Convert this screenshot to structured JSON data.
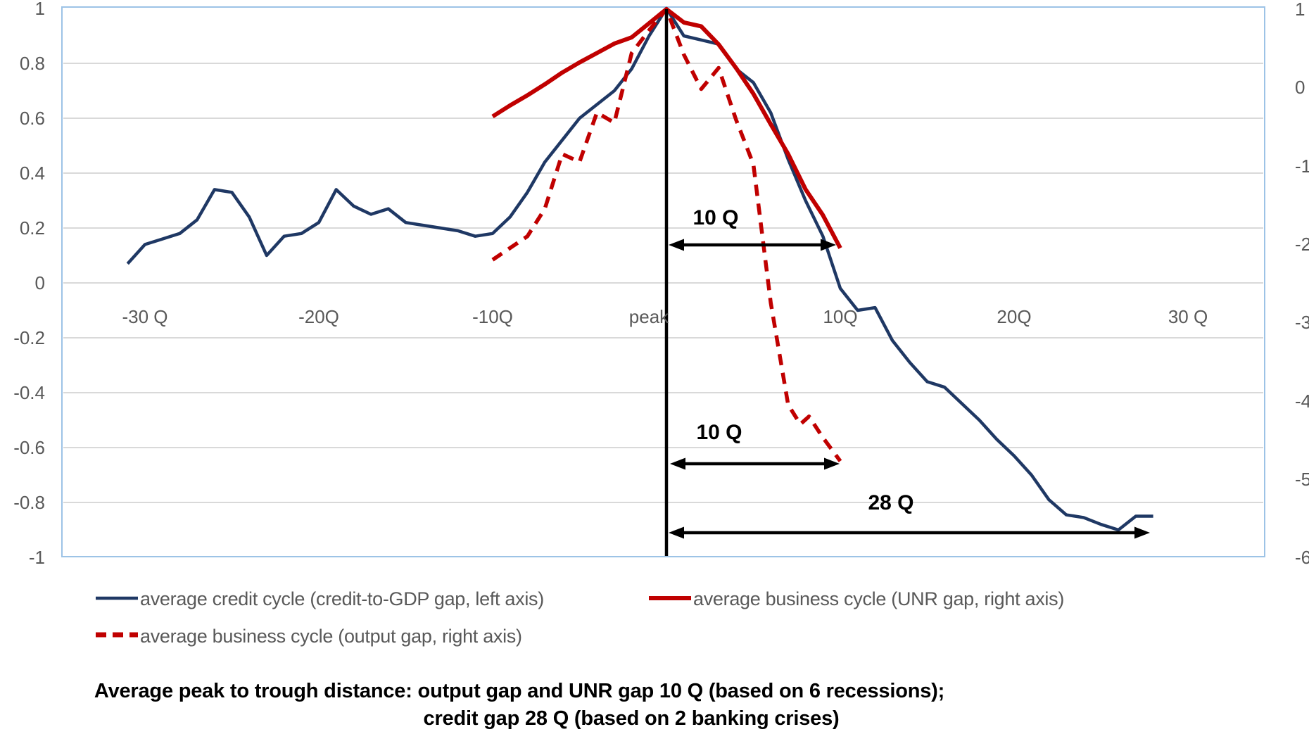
{
  "colors": {
    "credit_line": "#1f3864",
    "business_line": "#c00000",
    "gridline": "#d9d9d9",
    "plot_frame": "#9dc3e6",
    "axis_text": "#595959",
    "annotation": "#000000"
  },
  "axes": {
    "left_ticks": [
      {
        "label": "1",
        "v": 1
      },
      {
        "label": "0.8",
        "v": 0.8
      },
      {
        "label": "0.6",
        "v": 0.6
      },
      {
        "label": "0.4",
        "v": 0.4
      },
      {
        "label": "0.2",
        "v": 0.2
      },
      {
        "label": "0",
        "v": 0
      },
      {
        "label": "-0.2",
        "v": -0.2
      },
      {
        "label": "-0.4",
        "v": -0.4
      },
      {
        "label": "-0.6",
        "v": -0.6
      },
      {
        "label": "-0.8",
        "v": -0.8
      },
      {
        "label": "-1",
        "v": -1
      }
    ],
    "right_ticks": [
      {
        "label": "1",
        "r": 1
      },
      {
        "label": "0",
        "r": 0
      },
      {
        "label": "-1",
        "r": -1
      },
      {
        "label": "-2",
        "r": -2
      },
      {
        "label": "-3",
        "r": -3
      },
      {
        "label": "-4",
        "r": -4
      },
      {
        "label": "-5",
        "r": -5
      },
      {
        "label": "-6",
        "r": -6
      }
    ],
    "x_ticks": [
      {
        "label": "-30 Q"
      },
      {
        "label": "-20Q"
      },
      {
        "label": "-10Q"
      },
      {
        "label": "peak"
      },
      {
        "label": "10Q"
      },
      {
        "label": "20Q"
      },
      {
        "label": "30 Q"
      }
    ]
  },
  "chart_data": {
    "type": "line",
    "xlabel_unit": "quarters relative to peak",
    "left_axis_range": [
      -1,
      1
    ],
    "right_axis_range": [
      -6,
      1
    ],
    "grid": true,
    "legend_position": "bottom",
    "series": [
      {
        "name": "average credit cycle (credit-to-GDP gap, left axis)",
        "axis": "left",
        "style": "solid",
        "color": "#1f3864",
        "points": [
          [
            -31,
            0.07
          ],
          [
            -30,
            0.14
          ],
          [
            -29,
            0.16
          ],
          [
            -28,
            0.18
          ],
          [
            -27,
            0.23
          ],
          [
            -26,
            0.34
          ],
          [
            -25,
            0.33
          ],
          [
            -24,
            0.24
          ],
          [
            -23,
            0.1
          ],
          [
            -22,
            0.17
          ],
          [
            -21,
            0.18
          ],
          [
            -20,
            0.22
          ],
          [
            -19,
            0.34
          ],
          [
            -18,
            0.28
          ],
          [
            -17,
            0.25
          ],
          [
            -16,
            0.27
          ],
          [
            -15,
            0.22
          ],
          [
            -14,
            0.21
          ],
          [
            -13,
            0.2
          ],
          [
            -12,
            0.19
          ],
          [
            -11,
            0.17
          ],
          [
            -10,
            0.18
          ],
          [
            -9,
            0.24
          ],
          [
            -8,
            0.33
          ],
          [
            -7,
            0.44
          ],
          [
            -6,
            0.52
          ],
          [
            -5,
            0.6
          ],
          [
            -4,
            0.65
          ],
          [
            -3,
            0.7
          ],
          [
            -2,
            0.78
          ],
          [
            -1,
            0.9
          ],
          [
            0,
            1.0
          ],
          [
            1,
            0.9
          ],
          [
            2,
            0.885
          ],
          [
            3,
            0.87
          ],
          [
            4,
            0.78
          ],
          [
            5,
            0.73
          ],
          [
            6,
            0.62
          ],
          [
            7,
            0.45
          ],
          [
            8,
            0.3
          ],
          [
            9,
            0.17
          ],
          [
            10,
            -0.02
          ],
          [
            11,
            -0.1
          ],
          [
            12,
            -0.09
          ],
          [
            13,
            -0.21
          ],
          [
            14,
            -0.29
          ],
          [
            15,
            -0.36
          ],
          [
            16,
            -0.38
          ],
          [
            17,
            -0.44
          ],
          [
            18,
            -0.5
          ],
          [
            19,
            -0.57
          ],
          [
            20,
            -0.63
          ],
          [
            21,
            -0.7
          ],
          [
            22,
            -0.79
          ],
          [
            23,
            -0.845
          ],
          [
            24,
            -0.855
          ],
          [
            25,
            -0.88
          ],
          [
            26,
            -0.9
          ],
          [
            27,
            -0.85
          ],
          [
            28,
            -0.85
          ]
        ]
      },
      {
        "name": "average business cycle (UNR gap, right axis)",
        "axis": "right",
        "style": "solid",
        "color": "#c00000",
        "points": [
          [
            -10,
            -0.37
          ],
          [
            -9,
            -0.23
          ],
          [
            -8,
            -0.1
          ],
          [
            -7,
            0.04
          ],
          [
            -6,
            0.19
          ],
          [
            -5,
            0.32
          ],
          [
            -4,
            0.44
          ],
          [
            -3,
            0.56
          ],
          [
            -2,
            0.64
          ],
          [
            -1,
            0.82
          ],
          [
            0,
            1.0
          ],
          [
            1,
            0.83
          ],
          [
            2,
            0.78
          ],
          [
            3,
            0.55
          ],
          [
            4,
            0.25
          ],
          [
            5,
            -0.08
          ],
          [
            6,
            -0.47
          ],
          [
            7,
            -0.85
          ],
          [
            8,
            -1.3
          ],
          [
            9,
            -1.63
          ],
          [
            10,
            -2.05
          ]
        ]
      },
      {
        "name": "average business cycle (output gap, right axis)",
        "axis": "right",
        "style": "dashed",
        "color": "#c00000",
        "points": [
          [
            -10,
            -2.2
          ],
          [
            -9,
            -2.05
          ],
          [
            -8,
            -1.9
          ],
          [
            -7,
            -1.55
          ],
          [
            -6,
            -0.85
          ],
          [
            -5,
            -0.95
          ],
          [
            -4,
            -0.32
          ],
          [
            -3,
            -0.45
          ],
          [
            -2,
            0.44
          ],
          [
            -1,
            0.73
          ],
          [
            0,
            1.0
          ],
          [
            1,
            0.42
          ],
          [
            2,
            -0.02
          ],
          [
            3,
            0.25
          ],
          [
            4,
            -0.41
          ],
          [
            5,
            -0.98
          ],
          [
            6,
            -2.75
          ],
          [
            7,
            -4.05
          ],
          [
            7.7,
            -4.3
          ],
          [
            8.2,
            -4.2
          ],
          [
            9,
            -4.47
          ],
          [
            10,
            -4.77
          ]
        ]
      }
    ],
    "annotations": [
      {
        "text": "10 Q",
        "meaning": "peak-to-trough distance, UNR gap"
      },
      {
        "text": "10 Q",
        "meaning": "peak-to-trough distance, output gap"
      },
      {
        "text": "28 Q",
        "meaning": "peak-to-trough distance, credit gap"
      }
    ]
  },
  "legend": {
    "items": [
      {
        "label": "average credit cycle (credit-to-GDP gap, left axis)"
      },
      {
        "label": "average business cycle (UNR gap, right axis)"
      },
      {
        "label": "average business cycle (output gap, right axis)"
      }
    ]
  },
  "caption": {
    "line1": "Average peak to trough distance: output gap and UNR gap 10 Q  (based on 6 recessions);",
    "line2": "credit gap 28 Q (based on 2 banking crises)"
  }
}
